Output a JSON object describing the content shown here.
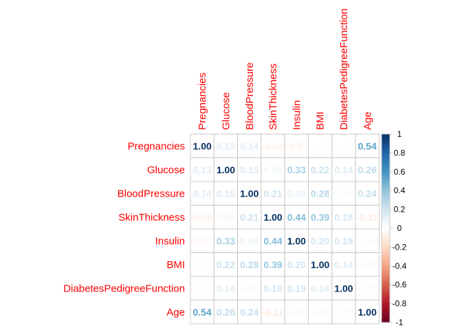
{
  "chart_data": {
    "type": "heatmap",
    "method": "number",
    "variables": [
      "Pregnancies",
      "Glucose",
      "BloodPressure",
      "SkinThickness",
      "Insulin",
      "BMI",
      "DiabetesPedigreeFunction",
      "Age"
    ],
    "matrix": [
      [
        1.0,
        0.13,
        0.14,
        -0.08,
        -0.07,
        0.02,
        -0.03,
        0.54
      ],
      [
        0.13,
        1.0,
        0.15,
        0.06,
        0.33,
        0.22,
        0.14,
        0.26
      ],
      [
        0.14,
        0.15,
        1.0,
        0.21,
        0.09,
        0.28,
        0.04,
        0.24
      ],
      [
        -0.08,
        0.06,
        0.21,
        1.0,
        0.44,
        0.39,
        0.18,
        -0.11
      ],
      [
        -0.07,
        0.33,
        0.09,
        0.44,
        1.0,
        0.2,
        0.19,
        -0.04
      ],
      [
        0.02,
        0.22,
        0.28,
        0.39,
        0.2,
        1.0,
        0.14,
        0.04
      ],
      [
        -0.03,
        0.14,
        0.04,
        0.18,
        0.19,
        0.14,
        1.0,
        0.03
      ],
      [
        0.54,
        0.26,
        0.24,
        -0.11,
        -0.04,
        0.04,
        0.03,
        1.0
      ]
    ],
    "value_format": "0.00",
    "label_color": "#ff0000",
    "grid": true,
    "colorbar": {
      "position": "right",
      "range": [
        -1,
        1
      ],
      "ticks": [
        "1",
        "0.8",
        "0.6",
        "0.4",
        "0.2",
        "0",
        "-0.2",
        "-0.4",
        "-0.6",
        "-0.8",
        "-1"
      ],
      "colors": [
        "#67001f",
        "#b2182b",
        "#d6604d",
        "#f4a582",
        "#fddbc7",
        "#ffffff",
        "#d1e5f0",
        "#92c5de",
        "#4393c3",
        "#2166ac",
        "#053061"
      ]
    }
  }
}
